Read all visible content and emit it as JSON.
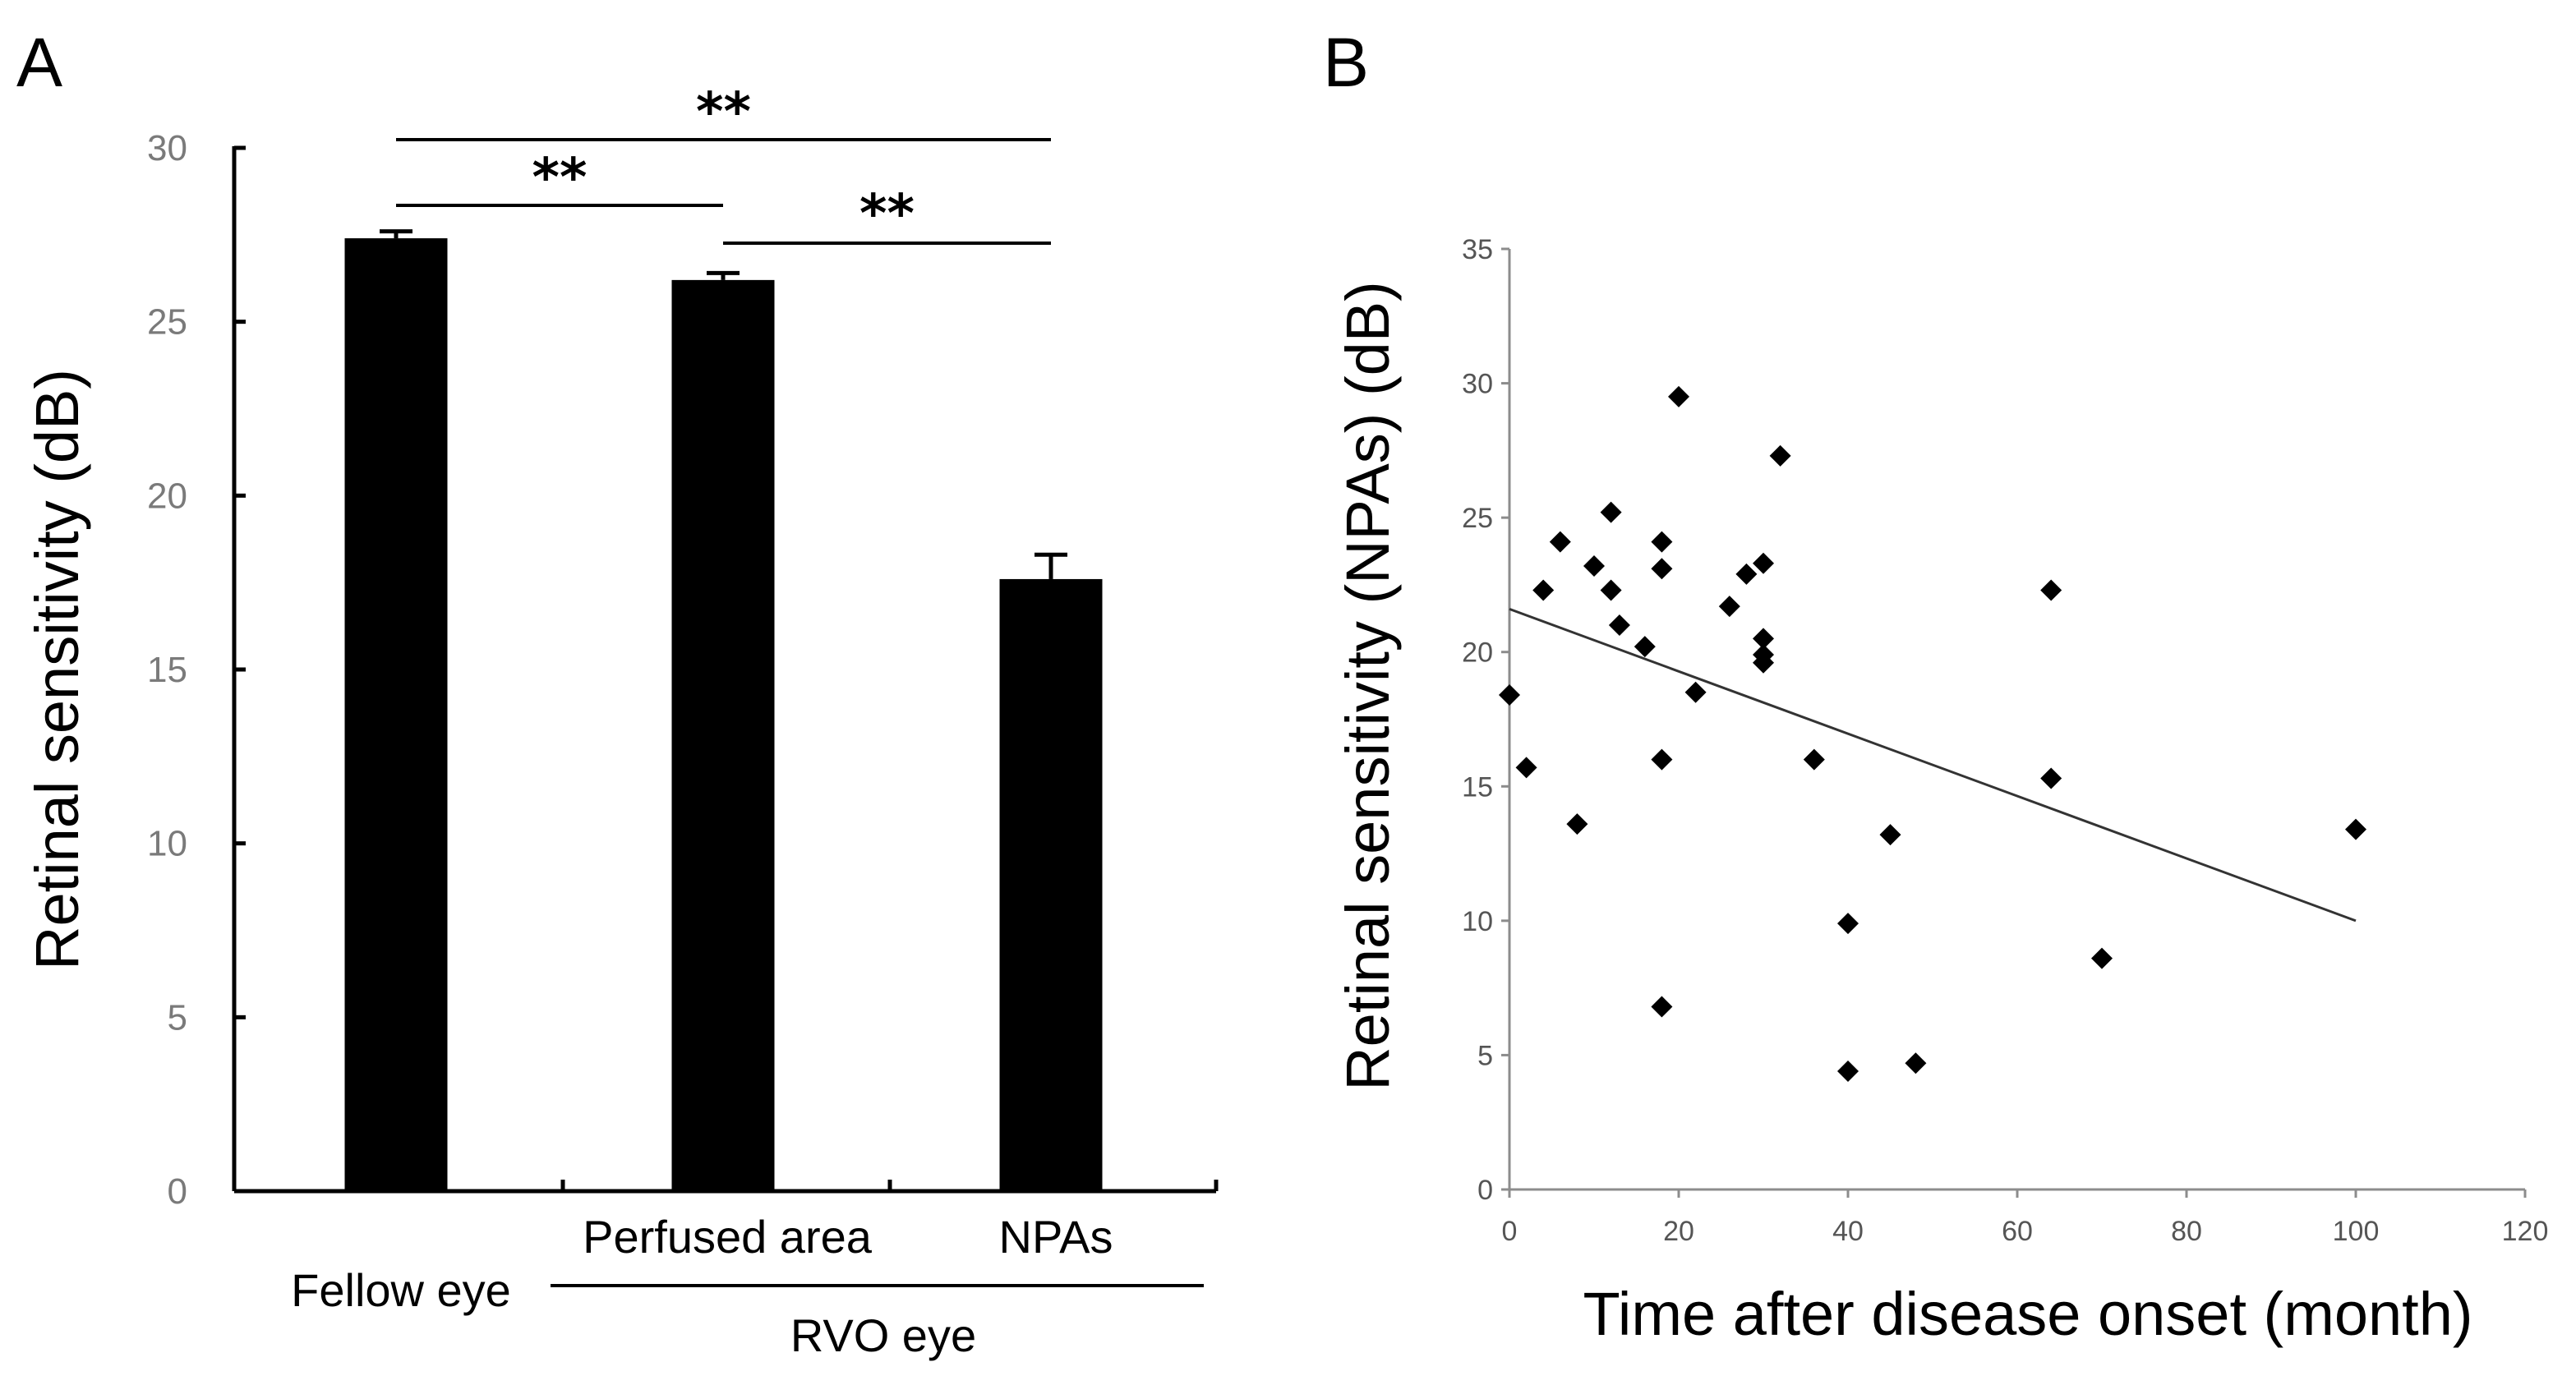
{
  "chart_data": [
    {
      "panel": "A",
      "type": "bar",
      "ylabel": "Retinal sensitivity (dB)",
      "ylim": [
        0,
        30
      ],
      "yticks": [
        0,
        5,
        10,
        15,
        20,
        25,
        30
      ],
      "categories": [
        "Fellow eye",
        "Perfused area",
        "NPAs"
      ],
      "values": [
        27.4,
        26.2,
        17.6
      ],
      "errors": [
        0.2,
        0.2,
        0.7
      ],
      "group_label": "RVO eye",
      "grouped_categories": [
        "Perfused area",
        "NPAs"
      ],
      "significance": [
        {
          "from": "Fellow eye",
          "to": "Perfused area",
          "label": "**"
        },
        {
          "from": "Fellow eye",
          "to": "NPAs",
          "label": "**"
        },
        {
          "from": "Perfused area",
          "to": "NPAs",
          "label": "**"
        }
      ]
    },
    {
      "panel": "B",
      "type": "scatter",
      "xlabel": "Time after disease onset (month)",
      "ylabel": "Retinal sensitivity (NPAs) (dB)",
      "xlim": [
        0,
        120
      ],
      "ylim": [
        0,
        35
      ],
      "xticks": [
        0,
        20,
        40,
        60,
        80,
        100,
        120
      ],
      "yticks": [
        0,
        5,
        10,
        15,
        20,
        25,
        30,
        35
      ],
      "points": [
        [
          0,
          18.4
        ],
        [
          2,
          15.7
        ],
        [
          4,
          22.3
        ],
        [
          6,
          24.1
        ],
        [
          8,
          13.6
        ],
        [
          10,
          23.2
        ],
        [
          12,
          25.2
        ],
        [
          12,
          22.3
        ],
        [
          13,
          21.0
        ],
        [
          16,
          20.2
        ],
        [
          18,
          24.1
        ],
        [
          18,
          23.1
        ],
        [
          18,
          16.0
        ],
        [
          18,
          6.8
        ],
        [
          20,
          29.5
        ],
        [
          22,
          18.5
        ],
        [
          26,
          21.7
        ],
        [
          28,
          22.9
        ],
        [
          30,
          23.3
        ],
        [
          30,
          20.5
        ],
        [
          30,
          19.6
        ],
        [
          30,
          19.9
        ],
        [
          32,
          27.3
        ],
        [
          36,
          16.0
        ],
        [
          40,
          9.9
        ],
        [
          40,
          4.4
        ],
        [
          45,
          13.2
        ],
        [
          48,
          4.7
        ],
        [
          64,
          22.3
        ],
        [
          64,
          15.3
        ],
        [
          70,
          8.6
        ],
        [
          100,
          13.4
        ]
      ],
      "trendline": {
        "x": [
          0,
          100
        ],
        "y": [
          21.6,
          10.0
        ]
      }
    }
  ]
}
